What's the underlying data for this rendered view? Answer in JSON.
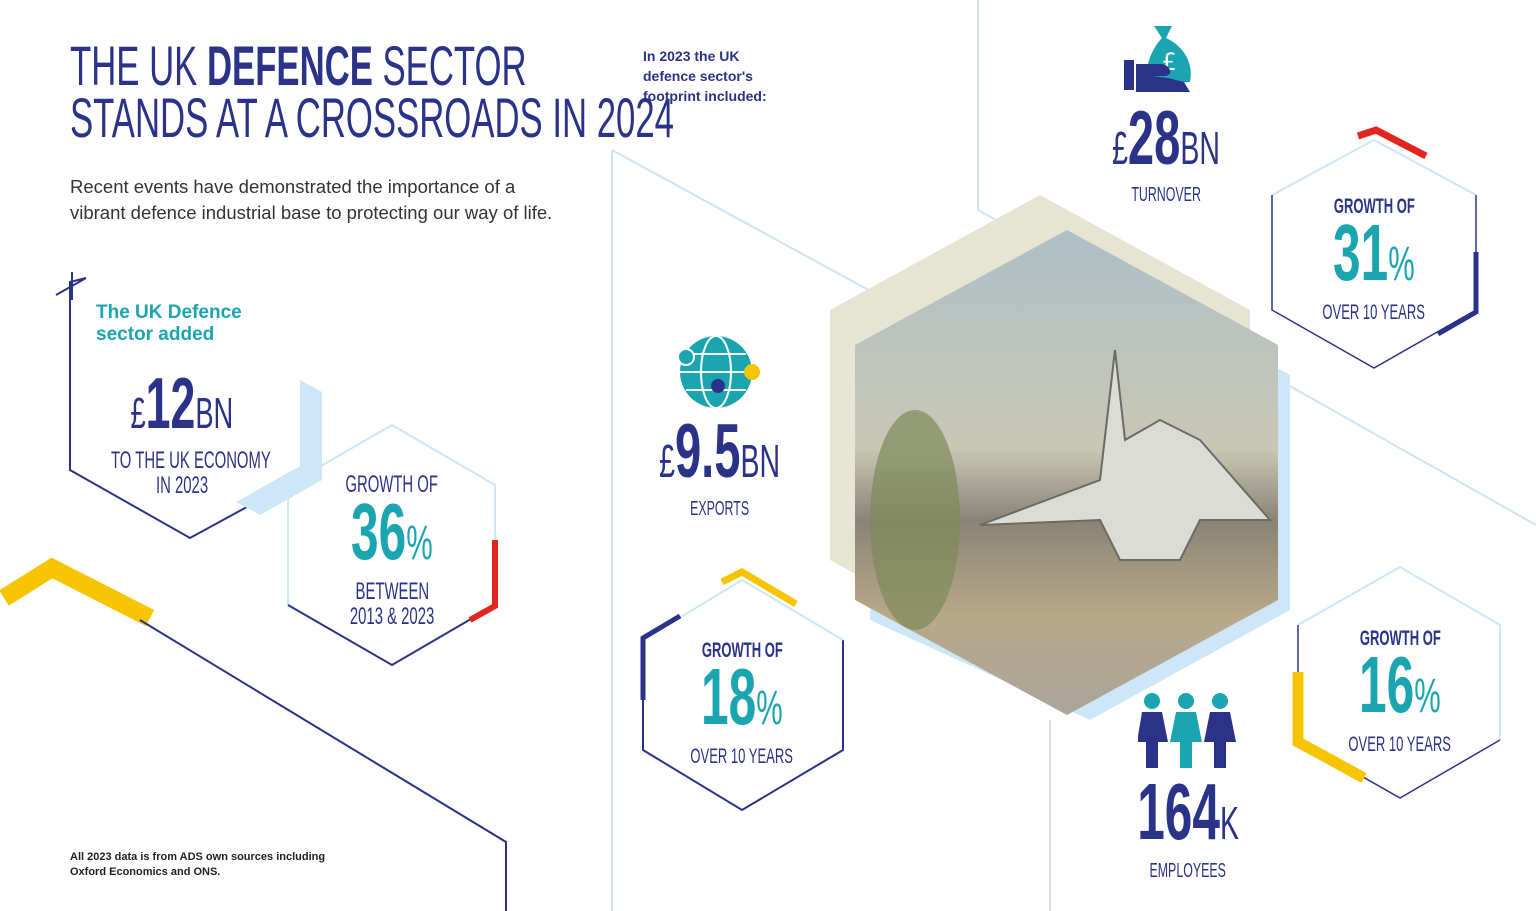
{
  "title": {
    "part1": "THE UK ",
    "bold": "DEFENCE",
    "part2": " SECTOR",
    "line2": "STANDS AT A CROSSROADS IN 2024"
  },
  "intro": "Recent events have demonstrated the importance of a vibrant defence industrial base to protecting our way of life.",
  "footprint_note": "In 2023 the UK defence sector's footprint included:",
  "economy": {
    "heading": "The UK Defence sector added",
    "currency": "£",
    "value": "12",
    "unit": "BN",
    "line1": "TO THE UK ECONOMY",
    "line2": "IN 2023"
  },
  "growth_36": {
    "heading": "GROWTH OF",
    "value": "36",
    "unit": "%",
    "line1": "BETWEEN",
    "line2": "2013 & 2023"
  },
  "exports": {
    "currency": "£",
    "value": "9.5",
    "unit": "BN",
    "label": "EXPORTS",
    "icon": "globe-icon"
  },
  "growth_18": {
    "heading": "GROWTH OF",
    "value": "18",
    "unit": "%",
    "label": "OVER 10 YEARS"
  },
  "turnover": {
    "currency": "£",
    "value": "28",
    "unit": "BN",
    "label": "TURNOVER",
    "icon": "money-bag-hand-icon"
  },
  "growth_31": {
    "heading": "GROWTH OF",
    "value": "31",
    "unit": "%",
    "label": "OVER 10 YEARS"
  },
  "employees": {
    "value": "164",
    "unit": "K",
    "label": "EMPLOYEES",
    "icon": "people-icon"
  },
  "growth_16": {
    "heading": "GROWTH OF",
    "value": "16",
    "unit": "%",
    "label": "OVER 10 YEARS"
  },
  "source": "All 2023 data is from ADS own sources including Oxford Economics and ONS.",
  "colors": {
    "navy": "#2a3388",
    "teal": "#1aa5b0",
    "yellow": "#f6c400",
    "red": "#e2261f",
    "lightblue": "#cde6f8",
    "beige": "#e6e4d3"
  }
}
